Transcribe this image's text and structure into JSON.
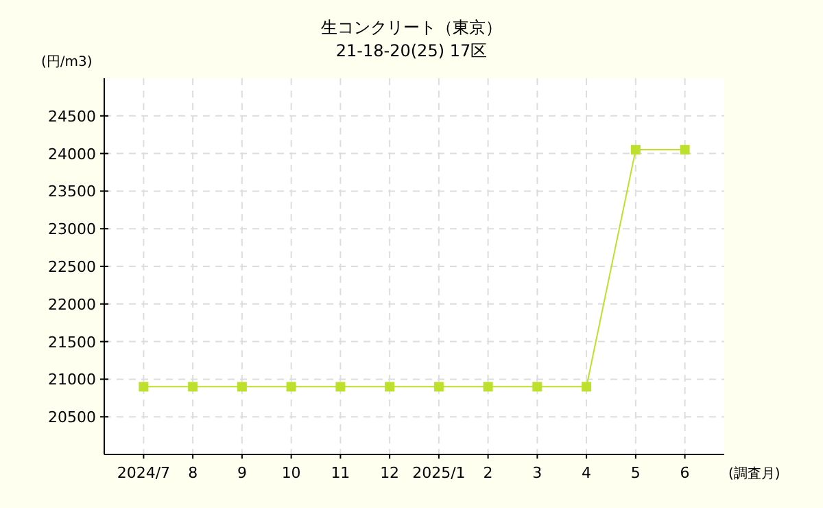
{
  "chart_data": {
    "type": "line",
    "title": "生コンクリート（東京）",
    "subtitle": "21-18-20(25) 17区",
    "ylabel": "(円/m3)",
    "xlabel": "(調査月)",
    "categories": [
      "2024/7",
      "8",
      "9",
      "10",
      "11",
      "12",
      "2025/1",
      "2",
      "3",
      "4",
      "5",
      "6"
    ],
    "series": [
      {
        "color": "#bde02c",
        "values": [
          20900,
          20900,
          20900,
          20900,
          20900,
          20900,
          20900,
          20900,
          20900,
          20900,
          24050,
          24050
        ]
      }
    ],
    "ylim": [
      20000,
      25000
    ],
    "yticks": [
      20500,
      21000,
      21500,
      22000,
      22500,
      23000,
      23500,
      24000,
      24500
    ],
    "grid": true,
    "marker": "square",
    "line_style": "solid"
  }
}
